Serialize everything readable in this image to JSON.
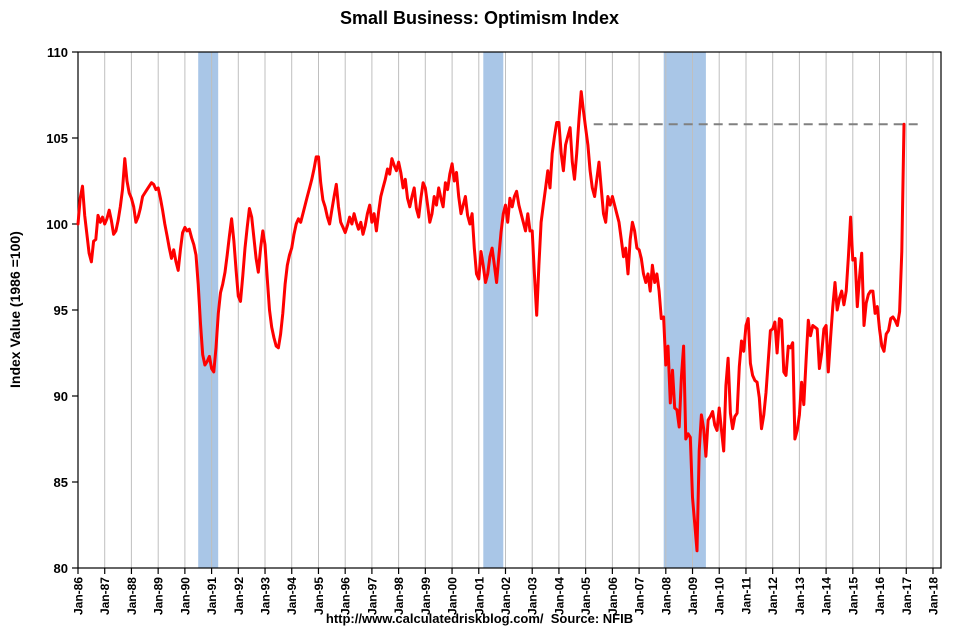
{
  "chart_data": {
    "type": "line",
    "title": "Small Business: Optimism Index",
    "ylabel": "Index Value (1986 =100)",
    "footer": "http://www.calculatedriskblog.com/  Source: NFIB",
    "ylim": [
      80,
      110
    ],
    "y_ticks": [
      80,
      85,
      90,
      95,
      100,
      105,
      110
    ],
    "x_domain": [
      1986,
      2018.3
    ],
    "x_tick_start_year": 1986,
    "x_tick_labels": [
      "Jan-86",
      "Jan-87",
      "Jan-88",
      "Jan-89",
      "Jan-90",
      "Jan-91",
      "Jan-92",
      "Jan-93",
      "Jan-94",
      "Jan-95",
      "Jan-96",
      "Jan-97",
      "Jan-98",
      "Jan-99",
      "Jan-00",
      "Jan-01",
      "Jan-02",
      "Jan-03",
      "Jan-04",
      "Jan-05",
      "Jan-06",
      "Jan-07",
      "Jan-08",
      "Jan-09",
      "Jan-10",
      "Jan-11",
      "Jan-12",
      "Jan-13",
      "Jan-14",
      "Jan-15",
      "Jan-16",
      "Jan-17",
      "Jan-18"
    ],
    "grid": "vertical-only",
    "gridline_color": "#BFBFBF",
    "border_color": "#000000",
    "line_color": "#FF0000",
    "recession_color": "#A9C6E7",
    "recessions": [
      {
        "start": 1990.5,
        "end": 1991.25
      },
      {
        "start": 2001.17,
        "end": 2001.92
      },
      {
        "start": 2007.92,
        "end": 2009.5
      }
    ],
    "dashed_line": {
      "value": 105.8,
      "start": 2005.3,
      "end": 2017.5,
      "color": "#808080"
    },
    "series": [
      {
        "name": "NFIB Small Business Optimism Index (monthly)",
        "start_year": 1986,
        "values": [
          100.0,
          101.5,
          102.2,
          100.5,
          99.4,
          98.3,
          97.8,
          99.0,
          99.1,
          100.5,
          100.1,
          100.4,
          100.0,
          100.3,
          100.8,
          100.2,
          99.4,
          99.6,
          100.2,
          101.0,
          102.0,
          103.8,
          102.5,
          101.8,
          101.5,
          101.0,
          100.1,
          100.4,
          100.9,
          101.6,
          101.8,
          102.0,
          102.2,
          102.4,
          102.3,
          102.0,
          102.1,
          101.5,
          100.8,
          100.0,
          99.3,
          98.6,
          98.0,
          98.5,
          97.8,
          97.3,
          98.5,
          99.5,
          99.8,
          99.6,
          99.7,
          99.2,
          98.8,
          98.2,
          96.5,
          94.2,
          92.4,
          91.8,
          92.0,
          92.3,
          91.6,
          91.4,
          92.8,
          94.8,
          96.0,
          96.5,
          97.2,
          98.2,
          99.3,
          100.3,
          99.0,
          97.3,
          95.8,
          95.5,
          97.0,
          98.6,
          99.8,
          100.9,
          100.4,
          99.2,
          98.0,
          97.2,
          98.6,
          99.6,
          98.8,
          96.8,
          95.0,
          94.0,
          93.4,
          92.9,
          92.8,
          93.6,
          94.8,
          96.5,
          97.6,
          98.2,
          98.6,
          99.4,
          100.0,
          100.3,
          100.1,
          100.6,
          101.1,
          101.6,
          102.1,
          102.6,
          103.2,
          103.9,
          103.9,
          102.4,
          101.4,
          101.0,
          100.4,
          100.0,
          100.8,
          101.6,
          102.3,
          101.0,
          100.1,
          99.8,
          99.5,
          99.9,
          100.4,
          100.0,
          100.6,
          100.1,
          99.7,
          100.1,
          99.4,
          99.9,
          100.6,
          101.1,
          100.1,
          100.6,
          99.6,
          100.7,
          101.6,
          102.1,
          102.6,
          103.2,
          102.9,
          103.8,
          103.4,
          103.1,
          103.6,
          103.0,
          102.1,
          102.6,
          101.5,
          101.0,
          101.6,
          102.1,
          100.9,
          100.4,
          101.5,
          102.4,
          102.1,
          101.1,
          100.1,
          100.6,
          101.6,
          101.1,
          102.1,
          101.5,
          101.0,
          102.4,
          102.0,
          102.9,
          103.5,
          102.5,
          103.0,
          101.6,
          100.6,
          101.1,
          101.6,
          100.5,
          100.0,
          100.6,
          98.6,
          97.1,
          96.8,
          98.4,
          97.6,
          96.6,
          97.1,
          98.1,
          98.6,
          97.6,
          96.6,
          98.1,
          99.5,
          100.6,
          101.1,
          100.1,
          101.5,
          101.0,
          101.6,
          101.9,
          101.1,
          100.6,
          100.1,
          99.6,
          100.6,
          99.6,
          99.6,
          97.1,
          94.7,
          97.6,
          100.1,
          101.1,
          102.1,
          103.1,
          102.1,
          104.1,
          105.1,
          105.9,
          105.9,
          104.1,
          103.1,
          104.6,
          105.1,
          105.6,
          103.6,
          102.6,
          104.1,
          106.1,
          107.7,
          106.6,
          105.6,
          104.6,
          103.1,
          102.1,
          101.6,
          102.6,
          103.6,
          102.1,
          100.6,
          100.1,
          101.6,
          101.1,
          101.6,
          101.1,
          100.6,
          100.1,
          99.1,
          98.1,
          98.6,
          97.1,
          99.1,
          100.1,
          99.6,
          98.6,
          98.5,
          98.0,
          97.1,
          96.6,
          97.1,
          96.1,
          97.6,
          96.6,
          97.1,
          96.1,
          94.5,
          94.6,
          91.8,
          92.9,
          89.6,
          91.5,
          89.3,
          89.2,
          88.2,
          91.1,
          92.9,
          87.5,
          87.8,
          87.6,
          84.1,
          82.6,
          81.0,
          86.8,
          88.9,
          88.1,
          86.5,
          88.6,
          88.8,
          89.1,
          88.3,
          88.0,
          89.3,
          88.0,
          86.8,
          90.6,
          92.2,
          89.0,
          88.1,
          88.8,
          89.0,
          91.7,
          93.2,
          92.6,
          94.1,
          94.5,
          91.9,
          91.2,
          90.9,
          90.8,
          89.9,
          88.1,
          88.9,
          90.2,
          92.0,
          93.8,
          93.9,
          94.3,
          92.5,
          94.5,
          94.4,
          91.4,
          91.2,
          92.9,
          92.8,
          93.1,
          87.5,
          88.0,
          88.9,
          90.8,
          89.5,
          92.1,
          94.4,
          93.5,
          94.1,
          94.0,
          93.9,
          91.6,
          92.5,
          93.9,
          94.1,
          91.4,
          93.4,
          95.2,
          96.6,
          95.0,
          95.7,
          96.1,
          95.3,
          96.1,
          98.1,
          100.4,
          97.9,
          98.0,
          95.2,
          96.9,
          98.3,
          94.1,
          95.4,
          95.9,
          96.1,
          96.1,
          94.8,
          95.2,
          93.9,
          92.9,
          92.6,
          93.6,
          93.8,
          94.5,
          94.6,
          94.4,
          94.1,
          94.9,
          98.4,
          105.8
        ]
      }
    ]
  }
}
